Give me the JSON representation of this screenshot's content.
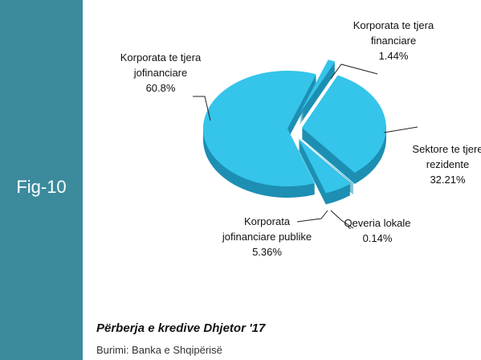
{
  "figure": "Fig-10",
  "chart_data": {
    "type": "pie",
    "categories": [
      "Korporata te tjera financiare",
      "Sektore te tjere rezidente",
      "Qeveria lokale",
      "Korporata jofinanciare publike",
      "Korporata te tjera jofinanciare"
    ],
    "values": [
      1.44,
      32.21,
      0.14,
      5.36,
      60.8
    ],
    "value_labels": [
      "1.44%",
      "32.21%",
      "0.14%",
      "5.36%",
      "60.8%"
    ],
    "color": "#35c4ea"
  },
  "caption": "Përberja e kredive Dhjetor '17",
  "source": "Burimi: Banka e Shqipërisë"
}
